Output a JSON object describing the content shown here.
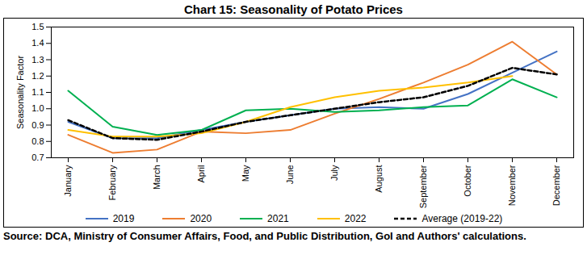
{
  "chart_data": {
    "type": "line",
    "title": "Chart 15: Seasonality of Potato Prices",
    "y_label": "Seasonality Factor",
    "caption_label": "Source:",
    "caption": "DCA, Ministry of Consumer Affairs, Food, and Public Distribution, GoI and Authors' calculations.",
    "categories": [
      "January",
      "February",
      "March",
      "April",
      "May",
      "June",
      "July",
      "August",
      "September",
      "October",
      "November",
      "December"
    ],
    "ylim": [
      0.7,
      1.5
    ],
    "yticks": [
      0.7,
      0.8,
      0.9,
      {
        "value": 1,
        "label": "1.0"
      },
      1.1,
      1.2,
      1.3,
      1.4,
      1.5
    ],
    "grid": false,
    "legend": "bottom",
    "series": [
      {
        "name": "2019",
        "color": "#4472C4",
        "line_style": "solid",
        "values": [
          0.92,
          0.82,
          0.82,
          0.87,
          0.92,
          0.96,
          1.0,
          1.01,
          1.0,
          1.09,
          1.22,
          1.35
        ]
      },
      {
        "name": "2020",
        "color": "#ED7D31",
        "line_style": "solid",
        "values": [
          0.84,
          0.73,
          0.75,
          0.86,
          0.85,
          0.87,
          0.97,
          1.06,
          1.16,
          1.27,
          1.41,
          1.21
        ]
      },
      {
        "name": "2021",
        "color": "#00B050",
        "line_style": "solid",
        "values": [
          1.11,
          0.89,
          0.84,
          0.87,
          0.99,
          1.0,
          0.98,
          0.99,
          1.01,
          1.02,
          1.18,
          1.07
        ]
      },
      {
        "name": "2022",
        "color": "#FFC000",
        "line_style": "solid",
        "values": [
          0.87,
          0.83,
          0.83,
          0.85,
          0.92,
          1.01,
          1.07,
          1.11,
          1.13,
          1.16,
          1.2,
          null
        ]
      },
      {
        "name": "Average (2019-22)",
        "color": "#000000",
        "line_style": "dashed",
        "values": [
          0.93,
          0.82,
          0.81,
          0.86,
          0.92,
          0.96,
          1.0,
          1.04,
          1.07,
          1.14,
          1.25,
          1.21
        ]
      }
    ]
  }
}
